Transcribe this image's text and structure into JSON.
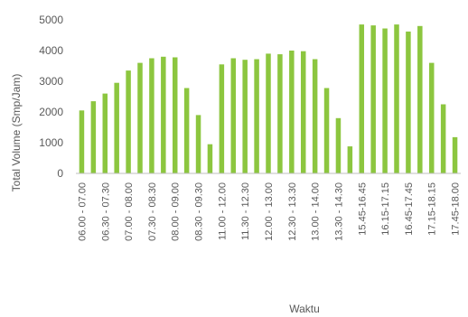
{
  "chart_data": {
    "type": "bar",
    "xlabel": "Waktu",
    "ylabel": "Total Volume (Smp/Jam)",
    "ylim": [
      0,
      5000
    ],
    "yticks": [
      0,
      1000,
      2000,
      3000,
      4000,
      5000
    ],
    "grid": false,
    "bar_color": "#8cc63f",
    "axis_color": "#bfbfbf",
    "text_color": "#595959",
    "tick_labels": [
      "06.00 - 07.00",
      "06.30 - 07.30",
      "07.00 - 08.00",
      "07.30 - 08.30",
      "08.00 - 09.00",
      "08.30 - 09.30",
      "11.00 - 12.00",
      "11.30 - 12.30",
      "12.00 - 13.00",
      "12.30 - 13.30",
      "13.00 - 14.00",
      "13.30 - 14.30",
      "15.45-16.45",
      "16.15-17.15",
      "16.45-17.45",
      "17.15-18.15",
      "17.45-18.00"
    ],
    "values": [
      2050,
      2350,
      2600,
      2950,
      3350,
      3600,
      3750,
      3800,
      3780,
      2780,
      1900,
      950,
      3550,
      3750,
      3700,
      3720,
      3900,
      3880,
      4000,
      3980,
      3720,
      2780,
      1800,
      880,
      4850,
      4820,
      4720,
      4850,
      4620,
      4800,
      3600,
      2250,
      1180
    ]
  }
}
